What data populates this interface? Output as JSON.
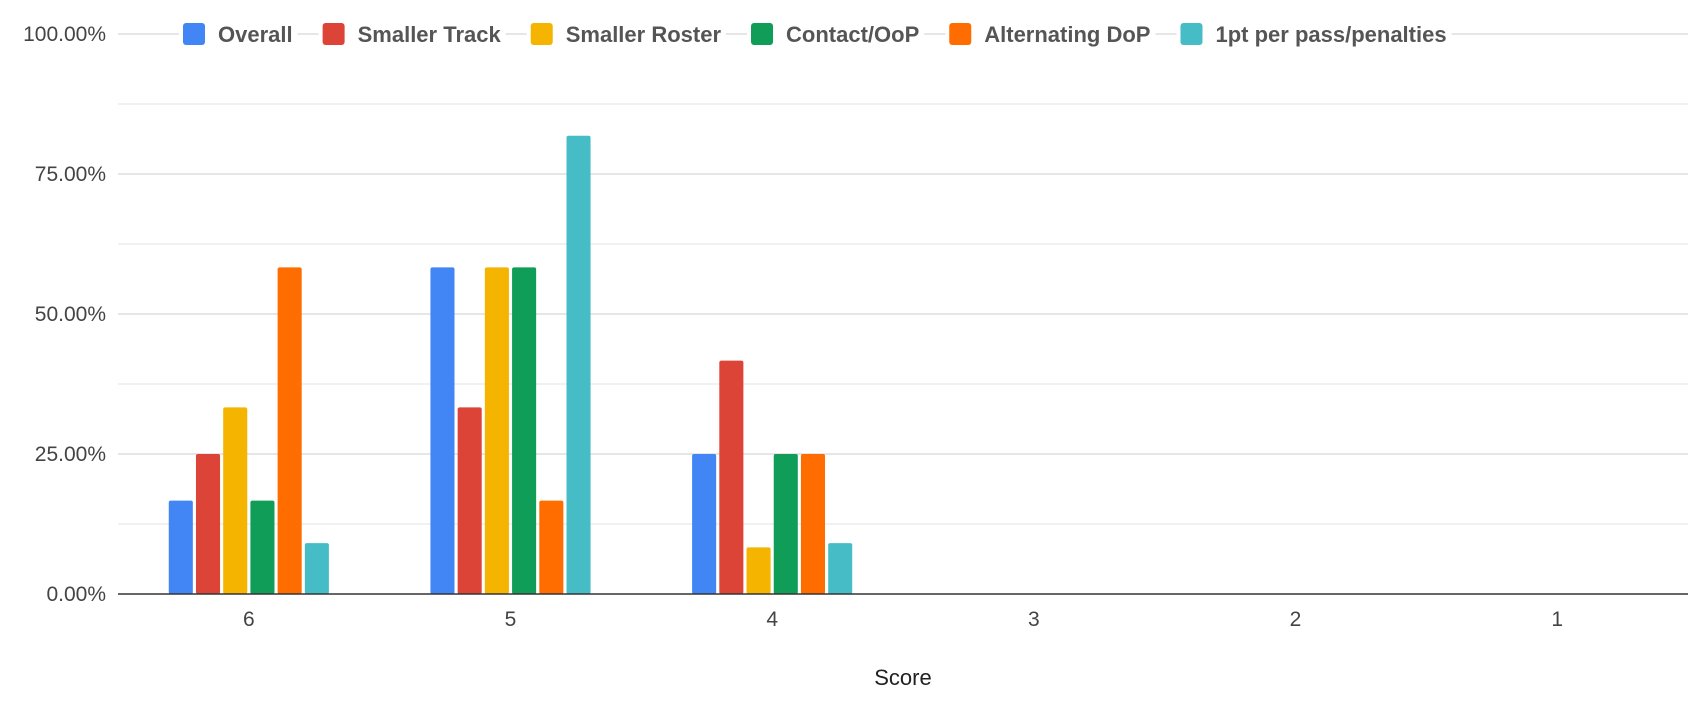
{
  "chart_data": {
    "type": "bar",
    "title": "",
    "xlabel": "Score",
    "ylabel": "",
    "categories": [
      "6",
      "5",
      "4",
      "3",
      "2",
      "1"
    ],
    "y_ticks": [
      "0.00%",
      "25.00%",
      "50.00%",
      "75.00%",
      "100.00%"
    ],
    "ylim": [
      0,
      100
    ],
    "grid": true,
    "legend_position": "top",
    "series": [
      {
        "name": "Overall",
        "color": "#4285F4",
        "values": [
          16.67,
          58.33,
          25,
          0,
          0,
          0
        ]
      },
      {
        "name": "Smaller Track",
        "color": "#DB4437",
        "values": [
          25,
          33.33,
          41.67,
          0,
          0,
          0
        ]
      },
      {
        "name": "Smaller Roster",
        "color": "#F4B400",
        "values": [
          33.33,
          58.33,
          8.33,
          0,
          0,
          0
        ]
      },
      {
        "name": "Contact/OoP",
        "color": "#0F9D58",
        "values": [
          16.67,
          58.33,
          25,
          0,
          0,
          0
        ]
      },
      {
        "name": "Alternating DoP",
        "color": "#FF6D00",
        "values": [
          58.33,
          16.67,
          25,
          0,
          0,
          0
        ]
      },
      {
        "name": "1pt per pass/penalties",
        "color": "#46BDC6",
        "values": [
          9.09,
          81.82,
          9.09,
          0,
          0,
          0
        ]
      }
    ]
  }
}
